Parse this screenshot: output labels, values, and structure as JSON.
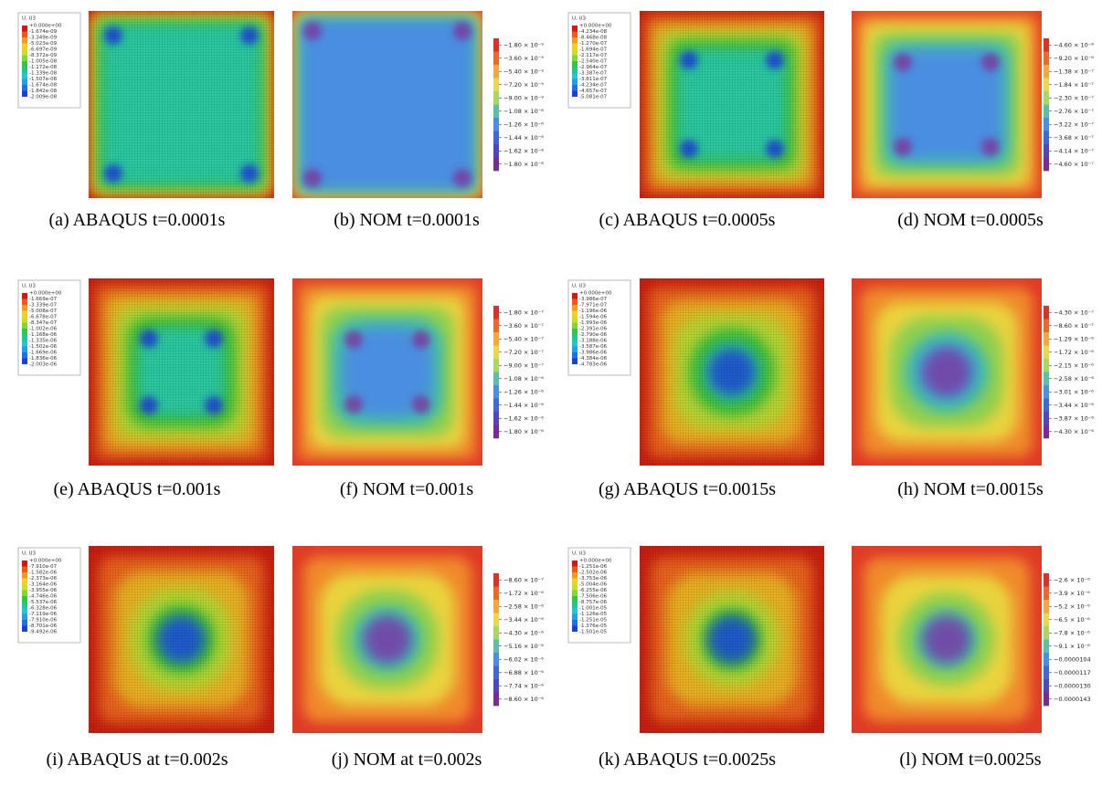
{
  "panels": [
    {
      "caption": "(a) ABAQUS t=0.0001s",
      "legend_title": "U, U3",
      "legend_labels": [
        "+0.000e+00",
        "-1.674e-09",
        "-3.349e-09",
        "-5.023e-09",
        "-6.697e-09",
        "-8.372e-09",
        "-1.005e-08",
        "-1.172e-08",
        "-1.339e-08",
        "-1.507e-08",
        "-1.674e-08",
        "-1.842e-08",
        "-2.009e-08"
      ]
    },
    {
      "caption": "(b) NOM t=0.0001s",
      "colorbar_labels": [
        "−1.80 × 10⁻⁹",
        "−3.60 × 10⁻⁹",
        "−5.40 × 10⁻⁹",
        "−7.20 × 10⁻⁹",
        "−9.00 × 10⁻⁹",
        "−1.08 × 10⁻⁸",
        "−1.26 × 10⁻⁸",
        "−1.44 × 10⁻⁸",
        "−1.62 × 10⁻⁸",
        "−1.80 × 10⁻⁸"
      ]
    },
    {
      "caption": "(c) ABAQUS t=0.0005s",
      "legend_title": "U, U3",
      "legend_labels": [
        "+0.000e+00",
        "-4.234e-08",
        "-8.468e-08",
        "-1.270e-07",
        "-1.694e-07",
        "-2.117e-07",
        "-2.540e-07",
        "-2.964e-07",
        "-3.387e-07",
        "-3.811e-07",
        "-4.234e-07",
        "-4.657e-07",
        "-5.081e-07"
      ]
    },
    {
      "caption": "(d) NOM t=0.0005s",
      "colorbar_labels": [
        "−4.60 × 10⁻⁸",
        "−9.20 × 10⁻⁸",
        "−1.38 × 10⁻⁷",
        "−1.84 × 10⁻⁷",
        "−2.30 × 10⁻⁷",
        "−2.76 × 10⁻⁷",
        "−3.22 × 10⁻⁷",
        "−3.68 × 10⁻⁷",
        "−4.14 × 10⁻⁷",
        "−4.60 × 10⁻⁷"
      ]
    },
    {
      "caption": "(e) ABAQUS t=0.001s",
      "legend_title": "U, U3",
      "legend_labels": [
        "+0.000e+00",
        "-1.669e-07",
        "-3.339e-07",
        "-5.008e-07",
        "-6.678e-07",
        "-8.347e-07",
        "-1.002e-06",
        "-1.168e-06",
        "-1.335e-06",
        "-1.502e-06",
        "-1.669e-06",
        "-1.836e-06",
        "-2.003e-06"
      ]
    },
    {
      "caption": "(f) NOM t=0.001s",
      "colorbar_labels": [
        "−1.80 × 10⁻⁷",
        "−3.60 × 10⁻⁷",
        "−5.40 × 10⁻⁷",
        "−7.20 × 10⁻⁷",
        "−9.00 × 10⁻⁷",
        "−1.08 × 10⁻⁶",
        "−1.26 × 10⁻⁶",
        "−1.44 × 10⁻⁶",
        "−1.62 × 10⁻⁶",
        "−1.80 × 10⁻⁶"
      ]
    },
    {
      "caption": "(g) ABAQUS t=0.0015s",
      "legend_title": "U, U3",
      "legend_labels": [
        "+0.000e+00",
        "-3.986e-07",
        "-7.971e-07",
        "-1.196e-06",
        "-1.594e-06",
        "-1.993e-06",
        "-2.391e-06",
        "-2.790e-06",
        "-3.188e-06",
        "-3.587e-06",
        "-3.986e-06",
        "-4.384e-06",
        "-4.783e-06"
      ]
    },
    {
      "caption": "(h) NOM t=0.0015s",
      "colorbar_labels": [
        "−4.30 × 10⁻⁷",
        "−8.60 × 10⁻⁷",
        "−1.29 × 10⁻⁶",
        "−1.72 × 10⁻⁶",
        "−2.15 × 10⁻⁶",
        "−2.58 × 10⁻⁶",
        "−3.01 × 10⁻⁶",
        "−3.44 × 10⁻⁶",
        "−3.87 × 10⁻⁶",
        "−4.30 × 10⁻⁶"
      ]
    },
    {
      "caption": "(i) ABAQUS at t=0.002s",
      "legend_title": "U, U3",
      "legend_labels": [
        "+0.000e+00",
        "-7.910e-07",
        "-1.582e-06",
        "-2.373e-06",
        "-3.164e-06",
        "-3.955e-06",
        "-4.746e-06",
        "-5.537e-06",
        "-6.328e-06",
        "-7.119e-06",
        "-7.910e-06",
        "-8.701e-06",
        "-9.492e-06"
      ]
    },
    {
      "caption": "(j) NOM at t=0.002s",
      "colorbar_labels": [
        "−8.60 × 10⁻⁷",
        "−1.72 × 10⁻⁶",
        "−2.58 × 10⁻⁶",
        "−3.44 × 10⁻⁶",
        "−4.30 × 10⁻⁶",
        "−5.16 × 10⁻⁶",
        "−6.02 × 10⁻⁶",
        "−6.88 × 10⁻⁶",
        "−7.74 × 10⁻⁶",
        "−8.60 × 10⁻⁶"
      ]
    },
    {
      "caption": "(k) ABAQUS t=0.0025s",
      "legend_title": "U, U3",
      "legend_labels": [
        "+0.000e+00",
        "-1.251e-06",
        "-2.502e-06",
        "-3.753e-06",
        "-5.004e-06",
        "-6.255e-06",
        "-7.506e-06",
        "-8.757e-06",
        "-1.001e-05",
        "-1.126e-05",
        "-1.251e-05",
        "-1.376e-05",
        "-1.501e-05"
      ]
    },
    {
      "caption": "(l) NOM t=0.0025s",
      "colorbar_labels": [
        "−2.6 × 10⁻⁶",
        "−3.9 × 10⁻⁶",
        "−5.2 × 10⁻⁶",
        "−6.5 × 10⁻⁶",
        "−7.8 × 10⁻⁶",
        "−9.1 × 10⁻⁶",
        "−0.0000104",
        "−0.0000117",
        "−0.0000130",
        "−0.0000143"
      ]
    }
  ]
}
